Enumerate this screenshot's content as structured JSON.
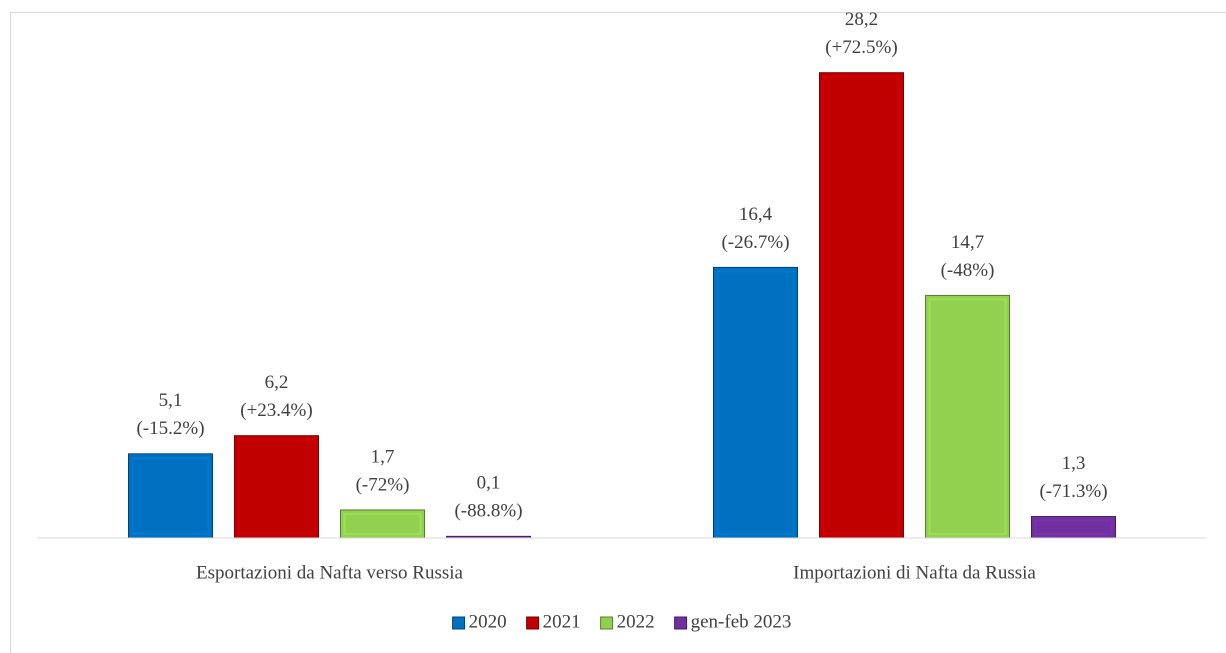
{
  "chart_data": {
    "type": "bar",
    "categories": [
      "Esportazioni da Nafta verso Russia",
      "Importazioni di Nafta da Russia"
    ],
    "series": [
      {
        "name": "2020",
        "color": "#0070c0",
        "values": [
          5.1,
          16.4
        ],
        "value_labels": [
          "5,1",
          "16,4"
        ],
        "change_labels": [
          "(-15.2%)",
          "(-26.7%)"
        ]
      },
      {
        "name": "2021",
        "color": "#c00000",
        "values": [
          6.2,
          28.2
        ],
        "value_labels": [
          "6,2",
          "28,2"
        ],
        "change_labels": [
          "(+23.4%)",
          "(+72.5%)"
        ]
      },
      {
        "name": "2022",
        "color": "#92d050",
        "values": [
          1.7,
          14.7
        ],
        "value_labels": [
          "1,7",
          "14,7"
        ],
        "change_labels": [
          "(-72%)",
          "(-48%)"
        ]
      },
      {
        "name": "gen-feb 2023",
        "color": "#7030a0",
        "values": [
          0.1,
          1.3
        ],
        "value_labels": [
          "0,1",
          "1,3"
        ],
        "change_labels": [
          "(-88.8%)",
          "(-71.3%)"
        ]
      }
    ],
    "ylim": [
      0,
      30
    ],
    "legend": "bottom"
  }
}
